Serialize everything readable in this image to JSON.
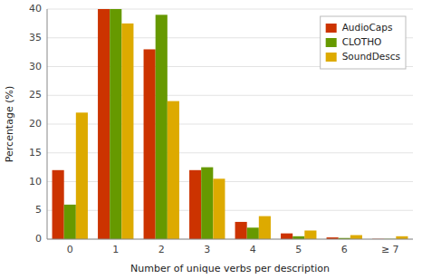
{
  "chart_data": {
    "type": "bar",
    "categories": [
      "0",
      "1",
      "2",
      "3",
      "4",
      "5",
      "6",
      "≥ 7"
    ],
    "series": [
      {
        "name": "AudioCaps",
        "color": "#cc3300",
        "values": [
          12,
          40,
          33,
          12,
          3,
          1.0,
          0.3,
          0.05
        ]
      },
      {
        "name": "CLOTHO",
        "color": "#669900",
        "values": [
          6,
          40,
          39,
          12.5,
          2,
          0.5,
          0.2,
          0.05
        ]
      },
      {
        "name": "SoundDescs",
        "color": "#ddaa00",
        "values": [
          22,
          37.5,
          24,
          10.5,
          4,
          1.5,
          0.7,
          0.5
        ]
      }
    ],
    "xlabel": "Number of unique verbs per description",
    "ylabel": "Percentage (%)",
    "ylim": [
      0,
      40
    ],
    "yticks": [
      0,
      5,
      10,
      15,
      20,
      25,
      30,
      35,
      40
    ],
    "grid": true,
    "legend": "upper right"
  }
}
